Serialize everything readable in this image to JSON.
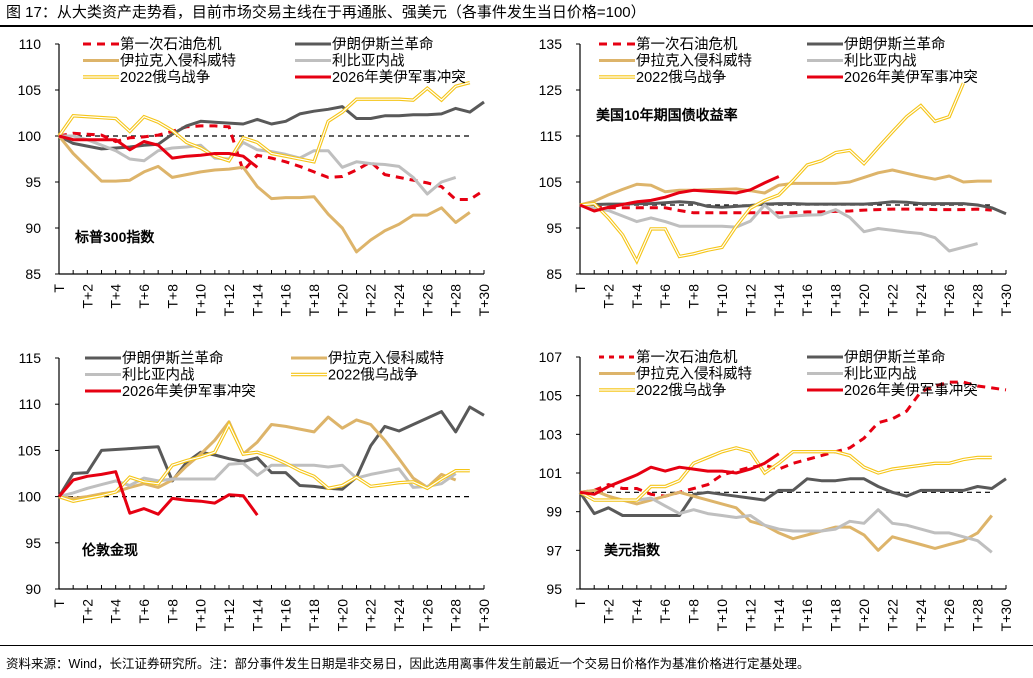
{
  "figure": {
    "title": "图 17：从大类资产走势看，目前市场交易主线在于再通胀、强美元（各事件发生当日价格=100）",
    "source": "资料来源：Wind，长江证券研究所。注：部分事件发生日期是非交易日，因此选用离事件发生前最近一个交易日价格作为基准价格进行定基处理。"
  },
  "series_styles": {
    "第一次石油危机": {
      "color": "#E60012",
      "style": "dashed"
    },
    "伊朗伊斯兰革命": {
      "color": "#595959",
      "style": "solid"
    },
    "伊拉克入侵科威特": {
      "color": "#DDB46A",
      "style": "solid"
    },
    "利比亚内战": {
      "color": "#BFBFBF",
      "style": "solid"
    },
    "2022俄乌战争": {
      "color": "#F5C518",
      "style": "double"
    },
    "2026年美伊军事冲突": {
      "color": "#E60012",
      "style": "solid"
    }
  },
  "chart_data": [
    {
      "type": "line",
      "title": "标普300指数",
      "xlabel": "",
      "ylabel": "",
      "categories": [
        "T",
        "T+1",
        "T+2",
        "T+3",
        "T+4",
        "T+5",
        "T+6",
        "T+7",
        "T+8",
        "T+9",
        "T+10",
        "T+11",
        "T+12",
        "T+13",
        "T+14",
        "T+15",
        "T+16",
        "T+17",
        "T+18",
        "T+19",
        "T+20",
        "T+21",
        "T+22",
        "T+23",
        "T+24",
        "T+25",
        "T+26",
        "T+27",
        "T+28",
        "T+29",
        "T+30"
      ],
      "tick_labels": [
        "T",
        "T+2",
        "T+4",
        "T+6",
        "T+8",
        "T+10",
        "T+12",
        "T+14",
        "T+16",
        "T+18",
        "T+20",
        "T+22",
        "T+24",
        "T+26",
        "T+28",
        "T+30"
      ],
      "ylim": [
        85,
        110
      ],
      "yticks": [
        85,
        90,
        95,
        100,
        105,
        110
      ],
      "baseline": 100,
      "legend": "top",
      "series": [
        {
          "name": "第一次石油危机",
          "values": [
            100,
            100.3,
            100.2,
            100.1,
            99.4,
            99.8,
            99.9,
            100.1,
            100.5,
            101,
            101.1,
            101.1,
            101,
            96.2,
            97.9,
            97.6,
            97.2,
            96.7,
            96.1,
            95.5,
            95.6,
            96.3,
            97.2,
            95.8,
            95.5,
            95.2,
            94.9,
            94.5,
            93.1,
            93.1,
            94.1
          ]
        },
        {
          "name": "伊朗伊斯兰革命",
          "values": [
            100,
            99.2,
            98.9,
            98.6,
            98.7,
            98.8,
            99,
            99.1,
            100.2,
            101.1,
            101.6,
            101.5,
            101.4,
            101.3,
            101.8,
            101.3,
            101.6,
            102.4,
            102.7,
            102.9,
            103.2,
            101.9,
            101.9,
            102.2,
            102.2,
            102.3,
            102.3,
            102.4,
            103,
            102.6,
            103.7
          ]
        },
        {
          "name": "伊拉克入侵科威特",
          "values": [
            100,
            98.1,
            96.6,
            95.1,
            95.1,
            95.2,
            96.1,
            96.7,
            95.5,
            95.8,
            96.1,
            96.3,
            96.4,
            96.6,
            94.5,
            93.2,
            93.3,
            93.3,
            93.4,
            91.5,
            90,
            87.4,
            88.7,
            89.7,
            90.4,
            91.4,
            91.4,
            92.2,
            90.6,
            91.7
          ]
        },
        {
          "name": "利比亚内战",
          "values": [
            100,
            100,
            99.6,
            99,
            98.4,
            97.5,
            97.3,
            98.4,
            98.7,
            98.8,
            99,
            97.6,
            97.5,
            99.3,
            98.5,
            98.3,
            98,
            97.6,
            98.4,
            98.4,
            96.6,
            97.2,
            97,
            96.9,
            96.7,
            95.5,
            93.7,
            95,
            95.5
          ]
        },
        {
          "name": "2022俄乌战争",
          "values": [
            100,
            102.2,
            102.1,
            102,
            101.9,
            100.5,
            102.1,
            101.5,
            100.6,
            99.3,
            98.7,
            97.8,
            97.3,
            99.8,
            99.3,
            98.1,
            97.8,
            97.5,
            97.2,
            101.6,
            102.6,
            104,
            104,
            104,
            104,
            103.9,
            105.2,
            103.9,
            105.4,
            105.8
          ]
        },
        {
          "name": "2026年美伊军事冲突",
          "values": [
            100,
            99.6,
            99.6,
            99.6,
            99.6,
            98.5,
            99.4,
            99,
            97.6,
            97.8,
            97.9,
            98.1,
            98.1,
            97.8,
            96.6
          ]
        }
      ]
    },
    {
      "type": "line",
      "title": "美国10年期国债收益率",
      "xlabel": "",
      "ylabel": "",
      "categories": [
        "T",
        "T+1",
        "T+2",
        "T+3",
        "T+4",
        "T+5",
        "T+6",
        "T+7",
        "T+8",
        "T+9",
        "T+10",
        "T+11",
        "T+12",
        "T+13",
        "T+14",
        "T+15",
        "T+16",
        "T+17",
        "T+18",
        "T+19",
        "T+20",
        "T+21",
        "T+22",
        "T+23",
        "T+24",
        "T+25",
        "T+26",
        "T+27",
        "T+28",
        "T+29",
        "T+30"
      ],
      "tick_labels": [
        "T",
        "T+2",
        "T+4",
        "T+6",
        "T+8",
        "T+10",
        "T+12",
        "T+14",
        "T+16",
        "T+18",
        "T+20",
        "T+22",
        "T+24",
        "T+26",
        "T+28",
        "T+30"
      ],
      "ylim": [
        85,
        135
      ],
      "yticks": [
        85,
        95,
        105,
        115,
        125,
        135
      ],
      "baseline": 100,
      "legend": "top",
      "series": [
        {
          "name": "第一次石油危机",
          "values": [
            100,
            99.5,
            99.4,
            99.4,
            99.4,
            99.4,
            99.4,
            98.8,
            98.3,
            98.3,
            98.3,
            98.3,
            98.3,
            98.3,
            98.3,
            98.3,
            98.5,
            98.5,
            98.6,
            98.7,
            98.9,
            99,
            99.1,
            99.1,
            99.1,
            99,
            99,
            99,
            99.1,
            98.9
          ]
        },
        {
          "name": "伊朗伊斯兰革命",
          "values": [
            100,
            100.1,
            100.2,
            100.2,
            100.3,
            100.3,
            100.5,
            100.7,
            100.5,
            99.7,
            99.5,
            99.7,
            99.9,
            100.2,
            100.3,
            100.3,
            100.2,
            100.2,
            100.2,
            100.2,
            100.2,
            100.4,
            100.7,
            100.6,
            100.3,
            100.3,
            100.3,
            100.3,
            100,
            99.4,
            98.1
          ]
        },
        {
          "name": "伊拉克入侵科威特",
          "values": [
            100,
            100.8,
            102.2,
            103.4,
            104.5,
            104.3,
            102.9,
            103.2,
            103.2,
            103.3,
            103.4,
            103.5,
            103.1,
            102.6,
            104.3,
            104.7,
            104.7,
            104.7,
            104.7,
            105,
            106,
            107,
            107.6,
            106.9,
            106.2,
            105.6,
            106.3,
            105,
            105.2,
            105.2
          ]
        },
        {
          "name": "利比亚内战",
          "values": [
            100,
            99.3,
            98.8,
            97.6,
            96.4,
            97.2,
            96.4,
            95.4,
            95.4,
            95.4,
            95.4,
            95.2,
            96.5,
            100,
            97.3,
            97.6,
            97.8,
            97.9,
            99,
            97.3,
            94.2,
            94.9,
            94.5,
            94.1,
            93.8,
            92.9,
            90,
            90.8,
            91.6
          ]
        },
        {
          "name": "2022俄乌战争",
          "values": [
            100,
            100.3,
            97.2,
            93.5,
            87.8,
            94.8,
            94.8,
            88.8,
            89.4,
            90.2,
            90.8,
            95.4,
            99.3,
            101,
            102.2,
            105.3,
            108.7,
            109.6,
            111.4,
            111.9,
            109,
            112.5,
            115.9,
            119.2,
            121.6,
            118.2,
            119.2,
            126.5
          ]
        },
        {
          "name": "2026年美伊军事冲突",
          "values": [
            100,
            98.7,
            99.5,
            100.1,
            100.7,
            101,
            101.7,
            102.7,
            103.2,
            103,
            102.8,
            102.6,
            103.3,
            104.8,
            106.2
          ]
        }
      ]
    },
    {
      "type": "line",
      "title": "伦敦金现",
      "xlabel": "",
      "ylabel": "",
      "categories": [
        "T",
        "T+1",
        "T+2",
        "T+3",
        "T+4",
        "T+5",
        "T+6",
        "T+7",
        "T+8",
        "T+9",
        "T+10",
        "T+11",
        "T+12",
        "T+13",
        "T+14",
        "T+15",
        "T+16",
        "T+17",
        "T+18",
        "T+19",
        "T+20",
        "T+21",
        "T+22",
        "T+23",
        "T+24",
        "T+25",
        "T+26",
        "T+27",
        "T+28",
        "T+29",
        "T+30"
      ],
      "tick_labels": [
        "T",
        "T+2",
        "T+4",
        "T+6",
        "T+8",
        "T+10",
        "T+12",
        "T+14",
        "T+16",
        "T+18",
        "T+20",
        "T+22",
        "T+24",
        "T+26",
        "T+28",
        "T+30"
      ],
      "ylim": [
        90,
        115
      ],
      "yticks": [
        90,
        95,
        100,
        105,
        110,
        115
      ],
      "baseline": 100,
      "legend": "top",
      "series": [
        {
          "name": "伊朗伊斯兰革命",
          "values": [
            100,
            102.5,
            102.6,
            105,
            105.1,
            105.2,
            105.3,
            105.4,
            101.7,
            103.7,
            104.8,
            104.5,
            104.1,
            103.8,
            104.2,
            102.6,
            102.6,
            101.2,
            101.1,
            100.9,
            100.8,
            102.1,
            105.5,
            107.6,
            107.1,
            107.8,
            108.5,
            109.2,
            107,
            109.7,
            108.8
          ]
        },
        {
          "name": "伊拉克入侵科威特",
          "values": [
            100,
            99.8,
            100,
            100.3,
            100.5,
            101,
            101.4,
            101,
            101.8,
            103.3,
            104.6,
            106.1,
            108.1,
            104.6,
            105.9,
            107.8,
            107.6,
            107.3,
            107,
            108.6,
            107.4,
            108.3,
            107.8,
            106.1,
            104.1,
            102,
            101,
            102.4,
            101.8
          ]
        },
        {
          "name": "利比亚内战",
          "values": [
            100,
            100.4,
            100.9,
            101.3,
            101.7,
            101.2,
            102,
            101.7,
            101.9,
            101.9,
            101.9,
            101.9,
            103.5,
            103.6,
            102.3,
            103.4,
            103.4,
            103.4,
            103.4,
            103.2,
            103.4,
            102,
            102.4,
            102.7,
            103,
            101,
            101.1,
            101.4,
            102.5
          ]
        },
        {
          "name": "2022俄乌战争",
          "values": [
            100,
            99.5,
            99.8,
            100.1,
            100.5,
            102.1,
            101.6,
            101.4,
            103.4,
            103.9,
            104.3,
            104.8,
            107.8,
            104.6,
            104.8,
            104.3,
            103.6,
            102.8,
            102.2,
            100.9,
            101.2,
            102.1,
            101.1,
            101.3,
            101.5,
            101.6,
            100.9,
            101.9,
            102.8,
            102.8
          ]
        },
        {
          "name": "2026年美伊军事冲突",
          "values": [
            100,
            101.8,
            102.2,
            102.4,
            102.7,
            98.2,
            98.7,
            98.1,
            99.8,
            99.6,
            99.5,
            99.3,
            100.2,
            100.1,
            98
          ]
        }
      ]
    },
    {
      "type": "line",
      "title": "美元指数",
      "xlabel": "",
      "ylabel": "",
      "categories": [
        "T",
        "T+1",
        "T+2",
        "T+3",
        "T+4",
        "T+5",
        "T+6",
        "T+7",
        "T+8",
        "T+9",
        "T+10",
        "T+11",
        "T+12",
        "T+13",
        "T+14",
        "T+15",
        "T+16",
        "T+17",
        "T+18",
        "T+19",
        "T+20",
        "T+21",
        "T+22",
        "T+23",
        "T+24",
        "T+25",
        "T+26",
        "T+27",
        "T+28",
        "T+29",
        "T+30"
      ],
      "tick_labels": [
        "T",
        "T+2",
        "T+4",
        "T+6",
        "T+8",
        "T+10",
        "T+12",
        "T+14",
        "T+16",
        "T+18",
        "T+20",
        "T+22",
        "T+24",
        "T+26",
        "T+28",
        "T+30"
      ],
      "ylim": [
        95,
        107
      ],
      "yticks": [
        95,
        97,
        99,
        101,
        103,
        105,
        107
      ],
      "baseline": 100,
      "legend": "top",
      "series": [
        {
          "name": "第一次石油危机",
          "values": [
            100,
            100.1,
            100.4,
            100.2,
            100.2,
            99.9,
            99.8,
            100,
            100.2,
            100.4,
            100.9,
            101.1,
            101.3,
            101.4,
            101.2,
            101.5,
            101.7,
            101.9,
            102.1,
            102.3,
            102.8,
            103.6,
            103.8,
            104.2,
            105.2,
            105.5,
            105.7,
            105.7,
            105.5,
            105.4,
            105.3
          ]
        },
        {
          "name": "伊朗伊斯兰革命",
          "values": [
            100,
            98.9,
            99.2,
            98.8,
            98.8,
            98.8,
            98.8,
            98.8,
            99.9,
            100,
            99.9,
            99.8,
            99.7,
            99.6,
            100.1,
            100.1,
            100.7,
            100.6,
            100.6,
            100.7,
            100.7,
            100.3,
            100,
            99.8,
            100.1,
            100.1,
            100.1,
            100.1,
            100.3,
            100.2,
            100.7
          ]
        },
        {
          "name": "伊拉克入侵科威特",
          "values": [
            100,
            100.1,
            99.8,
            99.6,
            99.4,
            99.6,
            99.8,
            100,
            99.8,
            99.6,
            99.4,
            99.2,
            98.5,
            98.3,
            97.9,
            97.6,
            97.8,
            98,
            98.2,
            98.2,
            97.8,
            97,
            97.7,
            97.5,
            97.3,
            97.1,
            97.3,
            97.5,
            97.9,
            98.8
          ]
        },
        {
          "name": "利比亚内战",
          "values": [
            100,
            99.6,
            99.6,
            99.6,
            99.6,
            99.7,
            99.3,
            98.9,
            99.1,
            98.9,
            98.8,
            98.7,
            98.8,
            98.3,
            98.1,
            98,
            98,
            98,
            98.1,
            98.5,
            98.4,
            99.1,
            98.4,
            98.3,
            98.1,
            97.9,
            97.9,
            97.7,
            97.5,
            96.9
          ]
        },
        {
          "name": "2022俄乌战争",
          "values": [
            100,
            99.6,
            99.6,
            99.6,
            99.6,
            100.3,
            100.3,
            100.6,
            101.5,
            101.8,
            102.1,
            102.3,
            102.1,
            101,
            101.5,
            102.1,
            102.1,
            102.1,
            102.1,
            101.9,
            101.3,
            101,
            101.2,
            101.3,
            101.4,
            101.5,
            101.5,
            101.7,
            101.8,
            101.8
          ]
        },
        {
          "name": "2026年美伊军事冲突",
          "values": [
            100,
            99.9,
            100.3,
            100.6,
            100.9,
            101.3,
            101.1,
            101.3,
            101.2,
            101.1,
            101.1,
            101,
            101.2,
            101.5,
            102
          ]
        }
      ]
    }
  ],
  "panels_legend": [
    [
      "第一次石油危机",
      "伊朗伊斯兰革命",
      "伊拉克入侵科威特",
      "利比亚内战",
      "2022俄乌战争",
      "2026年美伊军事冲突"
    ],
    [
      "第一次石油危机",
      "伊朗伊斯兰革命",
      "伊拉克入侵科威特",
      "利比亚内战",
      "2022俄乌战争",
      "2026年美伊军事冲突"
    ],
    [
      "伊朗伊斯兰革命",
      "伊拉克入侵科威特",
      "利比亚内战",
      "2022俄乌战争",
      "2026年美伊军事冲突"
    ],
    [
      "第一次石油危机",
      "伊朗伊斯兰革命",
      "伊拉克入侵科威特",
      "利比亚内战",
      "2022俄乌战争",
      "2026年美伊军事冲突"
    ]
  ]
}
